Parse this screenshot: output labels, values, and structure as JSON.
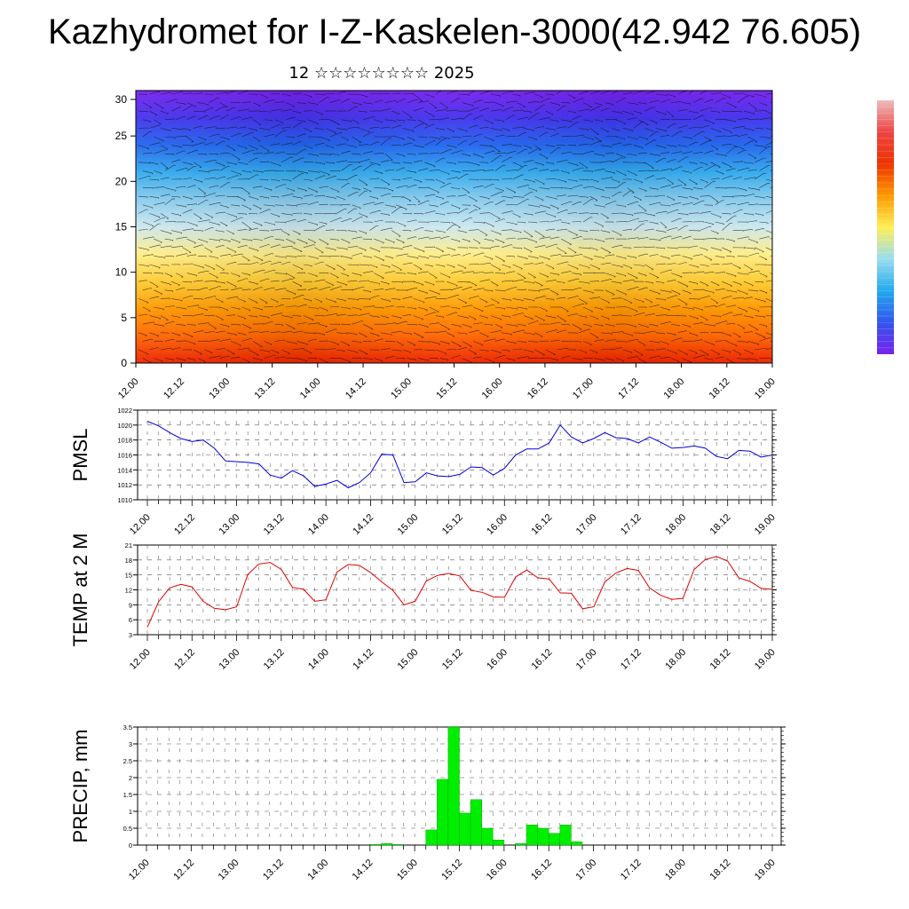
{
  "header": {
    "title": "Kazhydromet for I-Z-Kaskelen-3000(42.942 76.605)",
    "subtitle": "12 ☆☆☆☆☆☆☆☆ 2025"
  },
  "x_ticks": [
    "12.00",
    "12.12",
    "13.00",
    "13.12",
    "14.00",
    "14.12",
    "15.00",
    "15.12",
    "16.00",
    "16.12",
    "17.00",
    "17.12",
    "18.00",
    "18.12",
    "19.00"
  ],
  "colors": {
    "pmsl_line": "#0000dd",
    "temp_line": "#dd0000",
    "precip_bar": "#00ee00",
    "grid": "#555555"
  },
  "chart_data": [
    {
      "type": "heatmap",
      "name": "vertical-cross-section",
      "ylim": [
        0,
        30
      ],
      "y_ticks": [
        0,
        5,
        10,
        15,
        20,
        25,
        30
      ],
      "color_scale": [
        "#ee2200",
        "#ff6600",
        "#ff9900",
        "#ffcc33",
        "#ffee88",
        "#cce8f0",
        "#88ccee",
        "#33aaee",
        "#2266ee",
        "#4433ee",
        "#7722ee"
      ],
      "overlay": "wind barbs",
      "colorbar_stops": [
        "#7722ee",
        "#3355ee",
        "#22aaee",
        "#99ddee",
        "#ffee55",
        "#ff9900",
        "#ee3300",
        "#ee4444",
        "#eebbbb"
      ]
    },
    {
      "type": "line",
      "name": "pmsl",
      "ylabel": "PMSL",
      "ylim": [
        1010,
        1022
      ],
      "y_ticks": [
        1010,
        1012,
        1014,
        1016,
        1018,
        1020,
        1022
      ],
      "x_start": 12.0,
      "x_step_days": 0.125,
      "values": [
        1020.5,
        1019.9,
        1019.0,
        1018.2,
        1017.8,
        1018.0,
        1016.9,
        1015.2,
        1015.1,
        1015.0,
        1014.8,
        1013.3,
        1012.9,
        1013.9,
        1013.2,
        1011.8,
        1012.1,
        1012.6,
        1011.6,
        1012.3,
        1013.6,
        1016.1,
        1016.0,
        1012.3,
        1012.4,
        1013.6,
        1013.2,
        1013.1,
        1013.4,
        1014.4,
        1014.3,
        1013.3,
        1014.2,
        1016.0,
        1016.8,
        1016.8,
        1017.6,
        1020.0,
        1018.4,
        1017.6,
        1018.2,
        1019.0,
        1018.3,
        1018.2,
        1017.6,
        1018.4,
        1017.7,
        1016.9,
        1017.0,
        1017.2,
        1016.9,
        1015.8,
        1015.5,
        1016.6,
        1016.5,
        1015.7,
        1016.0
      ]
    },
    {
      "type": "line",
      "name": "temp",
      "ylabel": "TEMP at 2 M",
      "ylim": [
        3,
        21
      ],
      "y_ticks": [
        3,
        6,
        9,
        12,
        15,
        18,
        21
      ],
      "x_start": 12.0,
      "x_step_days": 0.125,
      "values": [
        4.5,
        9.6,
        12.4,
        13.1,
        12.6,
        9.7,
        8.3,
        8.0,
        8.6,
        15.1,
        17.2,
        17.5,
        16.1,
        12.5,
        12.1,
        9.7,
        10.0,
        15.6,
        17.1,
        16.9,
        15.5,
        13.6,
        11.9,
        9.0,
        9.7,
        13.8,
        14.9,
        15.3,
        14.8,
        11.9,
        11.5,
        10.6,
        10.5,
        14.6,
        16.0,
        14.4,
        14.2,
        11.4,
        11.3,
        8.2,
        8.6,
        13.6,
        15.4,
        16.3,
        15.9,
        12.4,
        10.9,
        10.1,
        10.3,
        16.1,
        18.1,
        18.7,
        17.8,
        14.4,
        13.7,
        12.3,
        12.1
      ]
    },
    {
      "type": "bar",
      "name": "precip",
      "ylabel": "PRECIP, mm",
      "ylim": [
        0,
        3.5
      ],
      "y_ticks": [
        0.0,
        0.5,
        1.0,
        1.5,
        2.0,
        2.5,
        3.0,
        3.5
      ],
      "x_start": 12.0,
      "x_step_days": 0.125,
      "values": [
        0,
        0,
        0,
        0,
        0,
        0,
        0,
        0,
        0,
        0,
        0,
        0,
        0,
        0,
        0,
        0,
        0,
        0,
        0,
        0,
        0.02,
        0.05,
        0.02,
        0,
        0,
        0.45,
        1.95,
        3.5,
        0.95,
        1.35,
        0.5,
        0.15,
        0,
        0.05,
        0.6,
        0.5,
        0.35,
        0.6,
        0.1,
        0,
        0,
        0,
        0,
        0,
        0,
        0,
        0,
        0,
        0,
        0,
        0,
        0,
        0,
        0,
        0,
        0
      ]
    }
  ]
}
